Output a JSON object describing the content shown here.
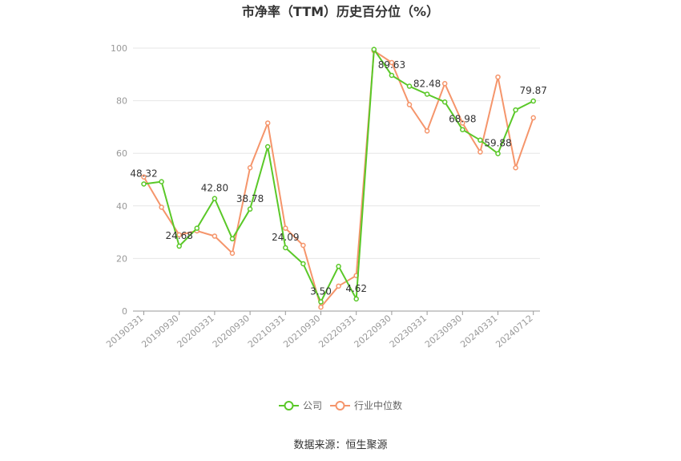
{
  "chart_data": {
    "type": "line",
    "title": "市净率（TTM）历史百分位（%）",
    "source": "数据来源：恒生聚源",
    "ylim": [
      0,
      100
    ],
    "yticks": [
      "0",
      "20",
      "40",
      "60",
      "80",
      "100"
    ],
    "xtick_labels": [
      "20190331",
      "20190930",
      "20200331",
      "20200930",
      "20210331",
      "20210930",
      "20220331",
      "20220930",
      "20230331",
      "20230930",
      "20240331",
      "20240712"
    ],
    "grid": true,
    "legend_position": "bottom",
    "series": [
      {
        "name": "公司",
        "color": "#5ac828",
        "values": [
          48.32,
          49.2,
          24.68,
          31.5,
          42.8,
          27.5,
          38.78,
          62.5,
          24.09,
          18.0,
          3.5,
          17.0,
          4.62,
          99.5,
          89.63,
          85.5,
          82.48,
          79.5,
          68.98,
          65.0,
          59.88,
          76.5,
          79.87
        ]
      },
      {
        "name": "行业中位数",
        "color": "#f5956b",
        "values": [
          51.0,
          39.5,
          29.0,
          30.5,
          28.5,
          22.0,
          54.5,
          71.5,
          31.5,
          25.0,
          1.5,
          9.5,
          13.5,
          99.0,
          94.5,
          78.5,
          68.5,
          86.5,
          71.5,
          60.5,
          89.0,
          54.5,
          73.5
        ]
      }
    ],
    "data_labels": [
      {
        "index": 0,
        "text": "48.32"
      },
      {
        "index": 2,
        "text": "24.68"
      },
      {
        "index": 4,
        "text": "42.80"
      },
      {
        "index": 6,
        "text": "38.78"
      },
      {
        "index": 8,
        "text": "24.09"
      },
      {
        "index": 10,
        "text": "3.50"
      },
      {
        "index": 12,
        "text": "4.62"
      },
      {
        "index": 14,
        "text": "89.63"
      },
      {
        "index": 16,
        "text": "82.48"
      },
      {
        "index": 18,
        "text": "68.98"
      },
      {
        "index": 20,
        "text": "59.88"
      },
      {
        "index": 22,
        "text": "79.87"
      }
    ]
  }
}
